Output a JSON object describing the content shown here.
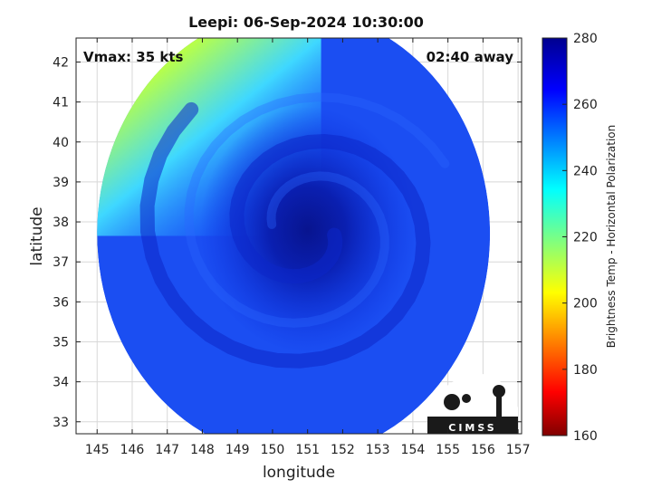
{
  "chart_data": {
    "type": "heatmap",
    "title": "Leepi: 06-Sep-2024 10:30:00",
    "xlabel": "longitude",
    "ylabel": "latitude",
    "xlim": [
      144.4,
      157.1
    ],
    "ylim": [
      32.7,
      42.6
    ],
    "xticks": [
      145,
      146,
      147,
      148,
      149,
      150,
      151,
      152,
      153,
      154,
      155,
      156,
      157
    ],
    "yticks": [
      33,
      34,
      35,
      36,
      37,
      38,
      39,
      40,
      41,
      42
    ],
    "grid": true,
    "annotations": {
      "vmax": "Vmax: 35 kts",
      "time_away": "02:40 away",
      "logo": "CIMSS"
    },
    "colorbar": {
      "label": "Brightness Temp - Horizontal Polarization",
      "min": 160,
      "max": 280,
      "ticks": [
        160,
        180,
        200,
        220,
        240,
        260,
        280
      ],
      "colormap": "jet"
    },
    "field": {
      "domain_center": [
        150.6,
        37.7
      ],
      "domain_radius_deg": 5.6,
      "storm_center": [
        151.0,
        37.8
      ],
      "background_temp": 262,
      "eye_temp": 272,
      "cold_region_corner": "top-left",
      "cold_region_min_temp": 205
    }
  },
  "colors": {
    "axis": "#222222",
    "grid": "#d8d8d8",
    "jet_stops": [
      "#00008f",
      "#0000ff",
      "#00ffff",
      "#ffff00",
      "#ff0000",
      "#800000"
    ]
  }
}
